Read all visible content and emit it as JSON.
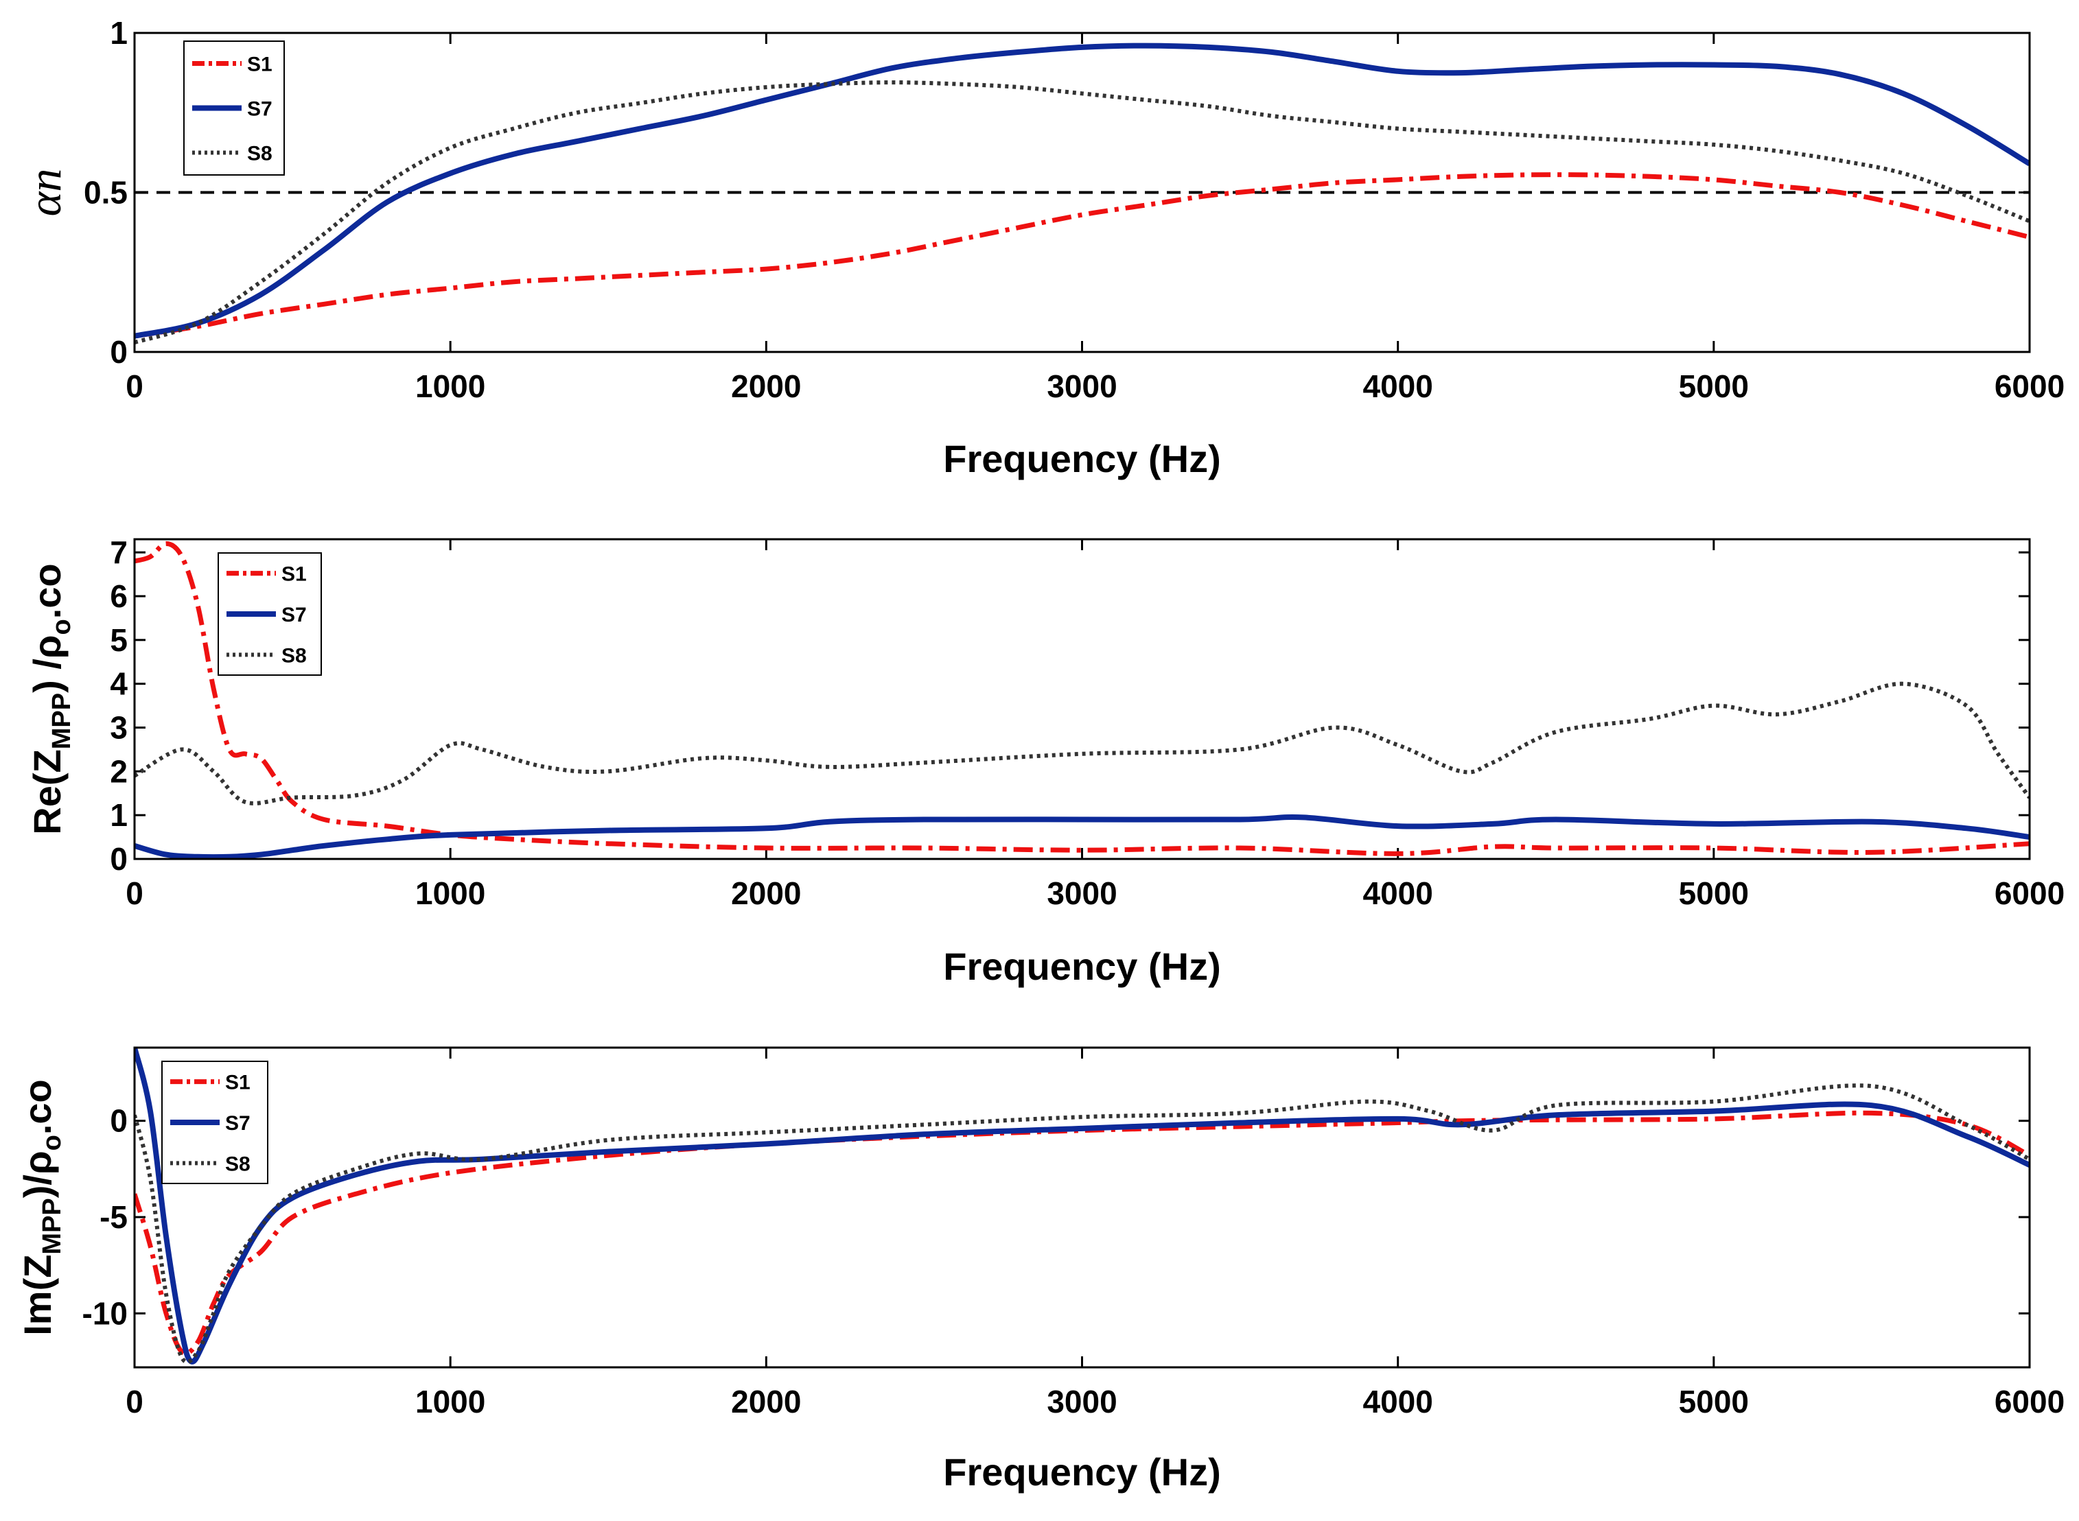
{
  "chart_data": [
    {
      "type": "line",
      "title": "",
      "xlabel": "Frequency (Hz)",
      "ylabel": "αn",
      "xlim": [
        0,
        6000
      ],
      "ylim": [
        0,
        1
      ],
      "xticks": [
        "0",
        "1000",
        "2000",
        "3000",
        "4000",
        "5000",
        "6000"
      ],
      "yticks": [
        {
          "value": 0,
          "label": "0"
        },
        {
          "value": 0.5,
          "label": "0.5"
        },
        {
          "value": 1,
          "label": "1"
        }
      ],
      "reference_line": {
        "y": 0.5,
        "style": "dashed",
        "color": "#000000"
      },
      "legend_position": "top-left",
      "series": [
        {
          "name": "S1",
          "style": "dashdot",
          "color": "#ee1111",
          "x": [
            0,
            200,
            400,
            600,
            800,
            1000,
            1200,
            1400,
            1600,
            1800,
            2000,
            2200,
            2400,
            2600,
            2800,
            3000,
            3200,
            3400,
            3600,
            3800,
            4000,
            4200,
            4400,
            4600,
            4800,
            5000,
            5200,
            5400,
            5600,
            5800,
            6000
          ],
          "y": [
            0.05,
            0.08,
            0.12,
            0.15,
            0.18,
            0.2,
            0.22,
            0.23,
            0.24,
            0.25,
            0.26,
            0.28,
            0.31,
            0.35,
            0.39,
            0.43,
            0.46,
            0.49,
            0.51,
            0.53,
            0.54,
            0.55,
            0.555,
            0.555,
            0.55,
            0.54,
            0.52,
            0.5,
            0.46,
            0.41,
            0.36
          ]
        },
        {
          "name": "S7",
          "style": "solid",
          "color": "#0d2a99",
          "x": [
            0,
            200,
            400,
            600,
            800,
            1000,
            1200,
            1400,
            1600,
            1800,
            2000,
            2200,
            2400,
            2600,
            2800,
            3000,
            3200,
            3400,
            3600,
            3800,
            4000,
            4200,
            4400,
            4600,
            4800,
            5000,
            5200,
            5400,
            5600,
            5800,
            6000
          ],
          "y": [
            0.05,
            0.09,
            0.18,
            0.32,
            0.47,
            0.56,
            0.62,
            0.66,
            0.7,
            0.74,
            0.79,
            0.84,
            0.89,
            0.92,
            0.94,
            0.955,
            0.96,
            0.955,
            0.94,
            0.91,
            0.88,
            0.875,
            0.885,
            0.895,
            0.9,
            0.9,
            0.895,
            0.87,
            0.81,
            0.71,
            0.59
          ]
        },
        {
          "name": "S8",
          "style": "dotted",
          "color": "#333333",
          "x": [
            0,
            200,
            400,
            600,
            800,
            1000,
            1200,
            1400,
            1600,
            1800,
            2000,
            2200,
            2400,
            2600,
            2800,
            3000,
            3200,
            3400,
            3600,
            3800,
            4000,
            4200,
            4400,
            4600,
            4800,
            5000,
            5200,
            5400,
            5600,
            5800,
            6000
          ],
          "y": [
            0.03,
            0.09,
            0.22,
            0.37,
            0.53,
            0.64,
            0.7,
            0.75,
            0.78,
            0.81,
            0.83,
            0.84,
            0.845,
            0.84,
            0.83,
            0.81,
            0.79,
            0.77,
            0.74,
            0.72,
            0.7,
            0.69,
            0.68,
            0.67,
            0.66,
            0.65,
            0.63,
            0.6,
            0.56,
            0.49,
            0.41
          ]
        }
      ]
    },
    {
      "type": "line",
      "title": "",
      "xlabel": "Frequency (Hz)",
      "ylabel": "Re(ZMPP) /ρo.co",
      "ylabel_parts": {
        "pre": "Re(Z",
        "sub1": "MPP",
        "mid": ") /ρ",
        "sub2": "o",
        "post": ".co"
      },
      "xlim": [
        0,
        6000
      ],
      "ylim": [
        0,
        7.3
      ],
      "xticks": [
        "0",
        "1000",
        "2000",
        "3000",
        "4000",
        "5000",
        "6000"
      ],
      "yticks": [
        {
          "value": 0,
          "label": "0"
        },
        {
          "value": 1,
          "label": "1"
        },
        {
          "value": 2,
          "label": "2"
        },
        {
          "value": 3,
          "label": "3"
        },
        {
          "value": 4,
          "label": "4"
        },
        {
          "value": 5,
          "label": "5"
        },
        {
          "value": 6,
          "label": "6"
        },
        {
          "value": 7,
          "label": "7"
        }
      ],
      "legend_position": "top-left",
      "series": [
        {
          "name": "S1",
          "style": "dashdot",
          "color": "#ee1111",
          "x": [
            0,
            50,
            100,
            150,
            200,
            250,
            300,
            350,
            400,
            450,
            500,
            600,
            800,
            1000,
            1200,
            1500,
            2000,
            2500,
            3000,
            3500,
            4000,
            4300,
            4500,
            5000,
            5500,
            6000
          ],
          "y": [
            6.8,
            6.9,
            7.2,
            6.9,
            5.8,
            3.9,
            2.5,
            2.4,
            2.3,
            1.8,
            1.3,
            0.9,
            0.75,
            0.55,
            0.45,
            0.35,
            0.25,
            0.25,
            0.2,
            0.25,
            0.12,
            0.28,
            0.25,
            0.25,
            0.15,
            0.35
          ]
        },
        {
          "name": "S7",
          "style": "solid",
          "color": "#0d2a99",
          "x": [
            0,
            100,
            200,
            300,
            400,
            500,
            600,
            800,
            1000,
            1500,
            2000,
            2200,
            2500,
            3000,
            3500,
            3700,
            4000,
            4300,
            4500,
            5000,
            5500,
            5800,
            6000
          ],
          "y": [
            0.3,
            0.1,
            0.05,
            0.05,
            0.1,
            0.2,
            0.3,
            0.45,
            0.55,
            0.65,
            0.7,
            0.85,
            0.9,
            0.9,
            0.9,
            0.95,
            0.75,
            0.8,
            0.9,
            0.8,
            0.85,
            0.7,
            0.5
          ]
        },
        {
          "name": "S8",
          "style": "dotted",
          "color": "#333333",
          "x": [
            0,
            150,
            250,
            350,
            500,
            700,
            850,
            1000,
            1100,
            1300,
            1500,
            1800,
            2000,
            2200,
            2500,
            3000,
            3500,
            3800,
            4000,
            4200,
            4300,
            4500,
            4800,
            5000,
            5200,
            5400,
            5600,
            5800,
            5900,
            6000
          ],
          "y": [
            1.9,
            2.5,
            2.0,
            1.3,
            1.4,
            1.45,
            1.8,
            2.6,
            2.5,
            2.1,
            2.0,
            2.3,
            2.25,
            2.1,
            2.2,
            2.4,
            2.5,
            3.0,
            2.6,
            2.0,
            2.2,
            2.9,
            3.2,
            3.5,
            3.3,
            3.6,
            4.0,
            3.5,
            2.4,
            1.4
          ]
        }
      ]
    },
    {
      "type": "line",
      "title": "",
      "xlabel": "Frequency (Hz)",
      "ylabel": "Im(ZMPP)/ρo.co",
      "ylabel_parts": {
        "pre": "Im(Z",
        "sub1": "MPP",
        "mid": ")/ρ",
        "sub2": "o",
        "post": ".co"
      },
      "xlim": [
        0,
        6000
      ],
      "ylim": [
        -12.8,
        3.8
      ],
      "xticks": [
        "0",
        "1000",
        "2000",
        "3000",
        "4000",
        "5000",
        "6000"
      ],
      "yticks": [
        {
          "value": 0,
          "label": "0"
        },
        {
          "value": -5,
          "label": "-5"
        },
        {
          "value": -10,
          "label": "-10"
        }
      ],
      "legend_position": "top-left",
      "series": [
        {
          "name": "S1",
          "style": "dashdot",
          "color": "#ee1111",
          "x": [
            0,
            50,
            100,
            150,
            200,
            250,
            300,
            400,
            500,
            700,
            1000,
            1500,
            2000,
            2500,
            3000,
            3500,
            4000,
            4200,
            4500,
            5000,
            5500,
            5800,
            6000
          ],
          "y": [
            -3.8,
            -6.5,
            -10.0,
            -12.0,
            -11.5,
            -9.5,
            -8.0,
            -6.8,
            -5.0,
            -3.8,
            -2.7,
            -1.8,
            -1.2,
            -0.8,
            -0.5,
            -0.3,
            -0.1,
            0.0,
            0.05,
            0.1,
            0.4,
            -0.2,
            -1.8
          ]
        },
        {
          "name": "S7",
          "style": "solid",
          "color": "#0d2a99",
          "x": [
            0,
            50,
            100,
            150,
            180,
            220,
            300,
            400,
            500,
            700,
            900,
            1100,
            1500,
            2000,
            2500,
            3000,
            3500,
            4000,
            4200,
            4500,
            5000,
            5500,
            5800,
            6000
          ],
          "y": [
            3.8,
            0.5,
            -6.0,
            -11.0,
            -12.5,
            -11.5,
            -8.5,
            -5.5,
            -4.0,
            -2.8,
            -2.1,
            -2.0,
            -1.6,
            -1.2,
            -0.7,
            -0.4,
            -0.1,
            0.1,
            -0.2,
            0.3,
            0.5,
            0.8,
            -0.8,
            -2.3
          ]
        },
        {
          "name": "S8",
          "style": "dotted",
          "color": "#333333",
          "x": [
            0,
            50,
            100,
            150,
            200,
            250,
            300,
            400,
            500,
            700,
            900,
            1100,
            1500,
            2000,
            2500,
            3000,
            3500,
            3900,
            4100,
            4300,
            4500,
            5000,
            5500,
            5800,
            6000
          ],
          "y": [
            0.3,
            -3.0,
            -9.0,
            -12.3,
            -12.0,
            -10.0,
            -7.8,
            -5.5,
            -3.8,
            -2.5,
            -1.7,
            -2.0,
            -1.0,
            -0.6,
            -0.2,
            0.2,
            0.4,
            1.0,
            0.5,
            -0.5,
            0.8,
            1.0,
            1.8,
            -0.2,
            -2.0
          ]
        }
      ]
    }
  ]
}
